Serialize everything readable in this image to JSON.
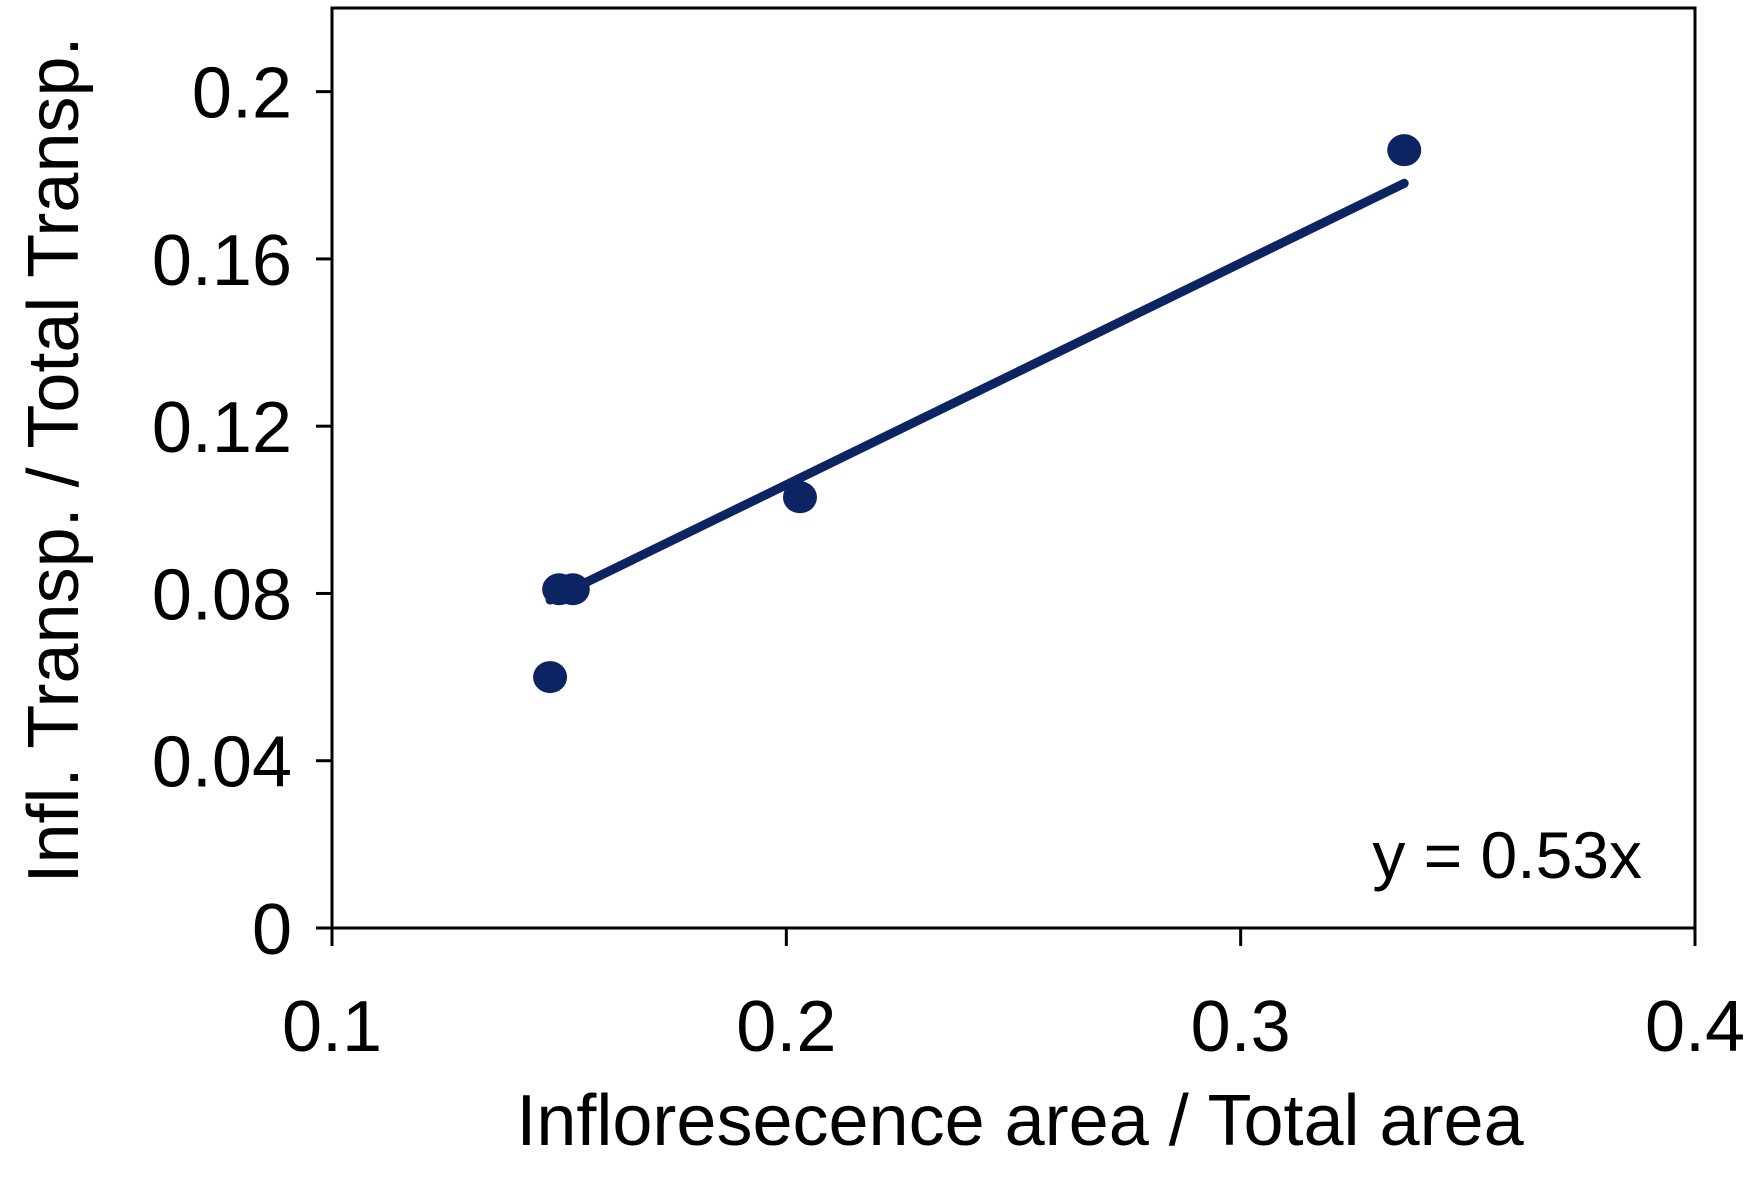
{
  "chart_data": {
    "type": "scatter",
    "title": "",
    "xlabel": "Infloresecence area / Total area",
    "ylabel": "Infl. Transp. / Total Transp.",
    "xlim": [
      0.1,
      0.4
    ],
    "ylim": [
      0,
      0.22
    ],
    "x_ticks": [
      "0.1",
      "0.2",
      "0.3",
      "0.4"
    ],
    "y_ticks": [
      "0",
      "0.04",
      "0.08",
      "0.12",
      "0.16",
      "0.2"
    ],
    "grid": false,
    "legend": "none",
    "points": [
      {
        "x": 0.148,
        "y": 0.06
      },
      {
        "x": 0.15,
        "y": 0.081
      },
      {
        "x": 0.153,
        "y": 0.081
      },
      {
        "x": 0.203,
        "y": 0.103
      },
      {
        "x": 0.336,
        "y": 0.186
      }
    ],
    "trendline": {
      "slope": 0.53,
      "x": [
        0.148,
        0.336
      ],
      "label": "y = 0.53x"
    },
    "colors": {
      "series": "#0c2461",
      "axis": "#000000"
    }
  }
}
